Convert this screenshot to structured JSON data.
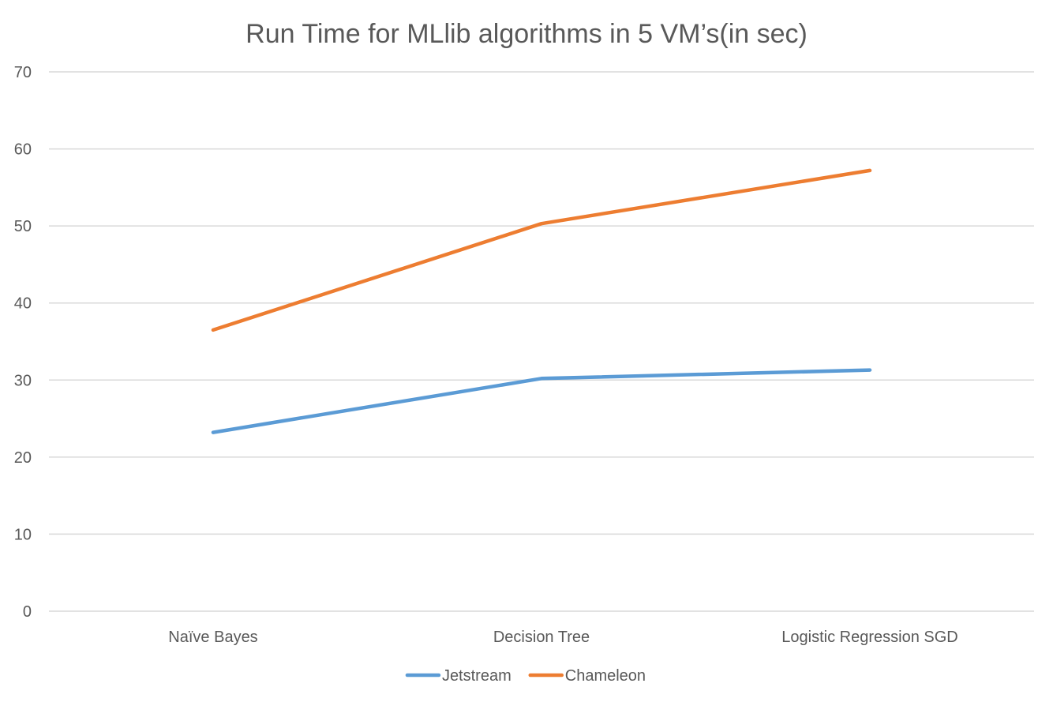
{
  "chart_data": {
    "type": "line",
    "title": "Run Time for MLlib algorithms in 5 VM’s(in sec)",
    "xlabel": "",
    "ylabel": "",
    "categories": [
      "Naïve Bayes",
      "Decision Tree",
      "Logistic Regression SGD"
    ],
    "series": [
      {
        "name": "Jetstream",
        "values": [
          23.2,
          30.2,
          31.3
        ],
        "color": "#5b9bd5"
      },
      {
        "name": "Chameleon",
        "values": [
          36.5,
          50.3,
          57.2
        ],
        "color": "#ed7d31"
      }
    ],
    "ylim": [
      0,
      70
    ],
    "yticks": [
      0,
      10,
      20,
      30,
      40,
      50,
      60,
      70
    ],
    "grid": true,
    "legend": "bottom"
  }
}
